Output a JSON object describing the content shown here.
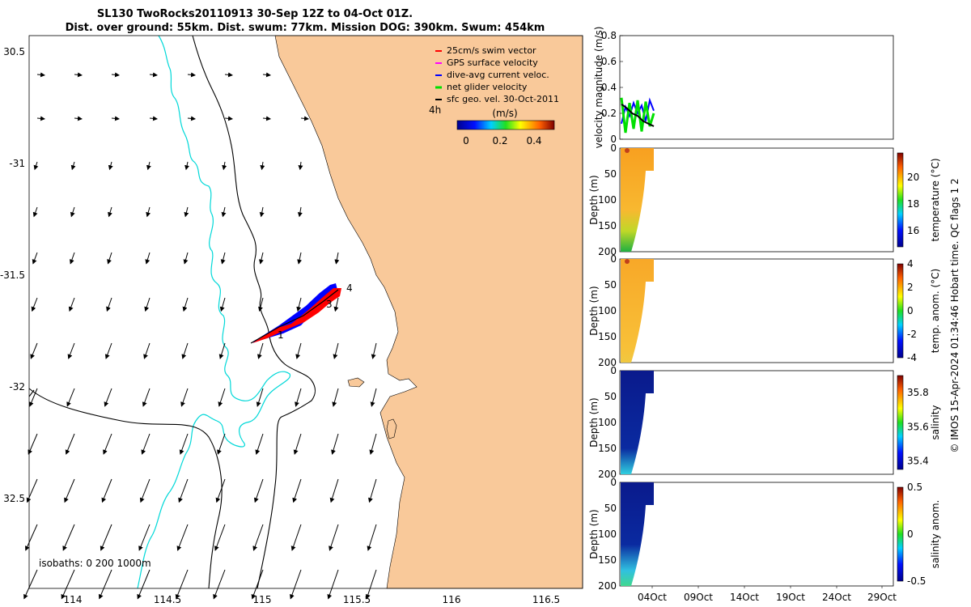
{
  "title": {
    "line1": "SL130 TwoRocks20110913 30-Sep 12Z to 04-Oct 01Z.",
    "line2": "Dist. over ground: 55km. Dist. swum: 77km. Mission DOG: 390km. Swum: 454km"
  },
  "colors": {
    "land": "#f9c99a",
    "isobath0": "#00d8d8",
    "track_red": "#ff0000",
    "track_blue": "#0000ff",
    "net_green": "#00e000",
    "gps_magenta": "#ff00ff"
  },
  "map": {
    "lon_ticks": [
      "114",
      "114.5",
      "115",
      "115.5",
      "116",
      "116.5"
    ],
    "lat_ticks": [
      "30.5",
      "-31",
      "-31.5",
      "-32",
      "32.5"
    ],
    "lon_range": [
      113.75,
      116.7
    ],
    "lat_range": [
      -32.88,
      -30.43
    ],
    "isobath_label": "isobaths: 0   200  1000m",
    "track_labels": [
      "1",
      "3",
      "4"
    ],
    "legend": {
      "items": [
        {
          "label": "25cm/s swim vector",
          "color": "#ff0000"
        },
        {
          "label": "GPS surface velocity",
          "color": "#ff00ff"
        },
        {
          "label": "dive-avg current veloc.",
          "color": "#0000ff"
        },
        {
          "label": "net glider velocity",
          "color": "#00e000"
        },
        {
          "label": "sfc geo. vel. 30-Oct-2011",
          "color": "#000000"
        }
      ],
      "timestep": "4h",
      "colorbar_title": "(m/s)",
      "colorbar_ticks": [
        "0",
        "0.2",
        "0.4"
      ]
    }
  },
  "chart_data": [
    {
      "type": "line",
      "title": "velocity magnitude",
      "ylabel": "velocity magnitude (m/s)",
      "ylim": [
        0,
        0.8
      ],
      "yticks": [
        "0",
        "0.2",
        "0.4",
        "0.6",
        "0.8"
      ],
      "series": [
        {
          "name": "dive-avg current veloc.",
          "color": "#0000ff",
          "values": [
            0.12,
            0.25,
            0.18,
            0.28,
            0.2,
            0.26,
            0.14,
            0.3,
            0.22
          ]
        },
        {
          "name": "net glider velocity",
          "color": "#00e000",
          "values": [
            0.32,
            0.05,
            0.28,
            0.08,
            0.3,
            0.06,
            0.29,
            0.1,
            0.2
          ]
        },
        {
          "name": "sfc geo. vel.",
          "color": "#000000",
          "values": [
            0.27,
            0.24,
            0.2,
            0.18,
            0.14,
            0.12,
            0.1
          ]
        }
      ]
    },
    {
      "type": "heatmap",
      "ylabel": "Depth (m)",
      "cbar_label": "temperature (°C)",
      "cbar_ticks": [
        "16",
        "18",
        "20"
      ],
      "clim": [
        14.8,
        21.8
      ]
    },
    {
      "type": "heatmap",
      "ylabel": "Depth (m)",
      "cbar_label": "temp. anom. (°C)",
      "cbar_ticks": [
        "4",
        "2",
        "0",
        "-2",
        "-4"
      ],
      "clim": [
        -4,
        4
      ]
    },
    {
      "type": "heatmap",
      "ylabel": "Depth (m)",
      "cbar_label": "salinity",
      "cbar_ticks": [
        "35.8",
        "35.6",
        "35.4"
      ],
      "clim": [
        35.35,
        35.9
      ]
    },
    {
      "type": "heatmap",
      "ylabel": "Depth (m)",
      "cbar_label": "salinity anom.",
      "cbar_ticks": [
        "0.5",
        "0",
        "-0.5"
      ],
      "clim": [
        -0.5,
        0.5
      ]
    }
  ],
  "depth_ticks": [
    "0",
    "50",
    "100",
    "150",
    "200"
  ],
  "time_ticks": [
    "04Oct",
    "09Oct",
    "14Oct",
    "19Oct",
    "24Oct",
    "29Oct"
  ],
  "footer": "© IMOS 15-Apr-2024 01:34:46 Hobart time. QC flags 1  2"
}
